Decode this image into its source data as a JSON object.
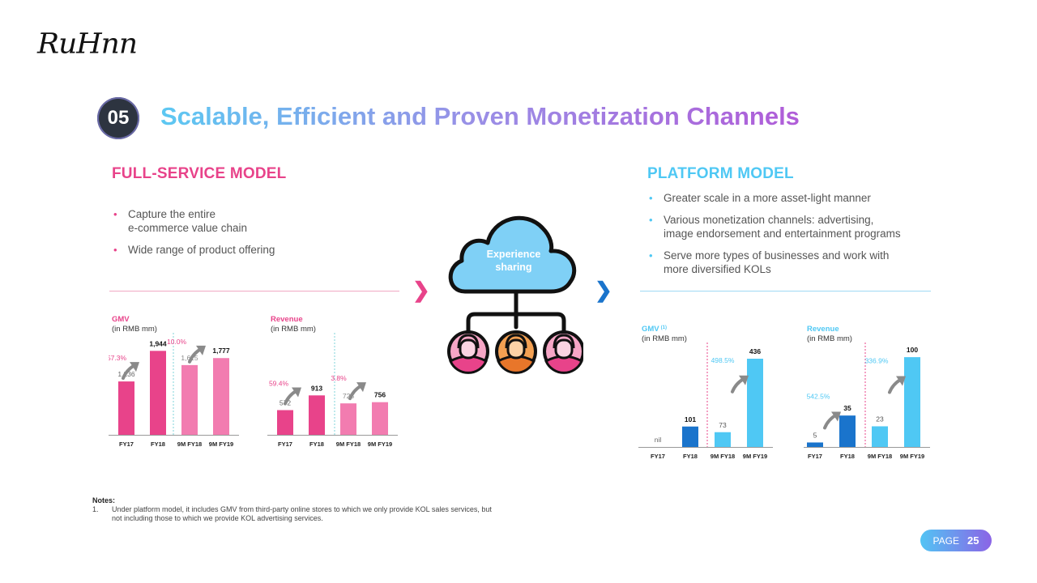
{
  "brand": {
    "logo_text": "RuHnn"
  },
  "section": {
    "number": "05",
    "title": "Scalable, Efficient and Proven Monetization Channels"
  },
  "colors": {
    "pink": "#e8438a",
    "pink_light": "#f27cb0",
    "blue": "#1a74cc",
    "cyan": "#4fc8f4",
    "arrow_gray": "#8a8a8a",
    "cloud": "#7fd0f6"
  },
  "left": {
    "heading": "FULL-SERVICE MODEL",
    "bullets": [
      "Capture the entire\ne-commerce value chain",
      "Wide range of product offering"
    ]
  },
  "right": {
    "heading": "PLATFORM MODEL",
    "bullets": [
      "Greater scale in a more asset-light manner",
      "Various monetization channels: advertising,\nimage endorsement and entertainment programs",
      "Serve more types of businesses and work with\nmore diversified KOLs"
    ]
  },
  "center": {
    "cloud_text": [
      "Experience",
      "sharing"
    ],
    "icons": [
      "cloud-icon",
      "user-icon",
      "user-icon",
      "user-icon"
    ]
  },
  "chart_data": [
    {
      "type": "bar",
      "title": "GMV",
      "subtitle": "(in RMB mm)",
      "categories": [
        "FY17",
        "FY18",
        "9M FY18",
        "9M FY19"
      ],
      "values": [
        1236,
        1944,
        1615,
        1777
      ],
      "value_labels": [
        "1,236",
        "1,944",
        "1,615",
        "1,777"
      ],
      "growth": [
        "57.3%",
        "10.0%"
      ],
      "ylim": [
        0,
        2100
      ]
    },
    {
      "type": "bar",
      "title": "Revenue",
      "subtitle": "(in RMB mm)",
      "categories": [
        "FY17",
        "FY18",
        "9M FY18",
        "9M FY19"
      ],
      "values": [
        572,
        913,
        728,
        756
      ],
      "value_labels": [
        "572",
        "913",
        "728",
        "756"
      ],
      "growth": [
        "59.4%",
        "3.8%"
      ],
      "ylim": [
        0,
        2100
      ]
    },
    {
      "type": "bar",
      "title": "GMV",
      "title_superscript": "(1)",
      "subtitle": "(in RMB mm)",
      "categories": [
        "FY17",
        "FY18",
        "9M FY18",
        "9M FY19"
      ],
      "values": [
        0,
        101,
        73,
        436
      ],
      "value_labels": [
        "nil",
        "101",
        "73",
        "436"
      ],
      "growth": [
        "498.5%"
      ],
      "ylim": [
        0,
        480
      ]
    },
    {
      "type": "bar",
      "title": "Revenue",
      "subtitle": "(in RMB mm)",
      "categories": [
        "FY17",
        "FY18",
        "9M FY18",
        "9M FY19"
      ],
      "values": [
        5,
        35,
        23,
        100
      ],
      "value_labels": [
        "5",
        "35",
        "23",
        "100"
      ],
      "growth": [
        "542.5%",
        "336.9%"
      ],
      "ylim": [
        0,
        110
      ]
    }
  ],
  "notes": {
    "title": "Notes:",
    "items": [
      {
        "num": "1.",
        "text": "Under platform model, it includes GMV from third-party online stores to which we only provide KOL sales services, but not including those to which we provide KOL advertising services."
      }
    ]
  },
  "page": {
    "label": "PAGE",
    "number": "25"
  }
}
